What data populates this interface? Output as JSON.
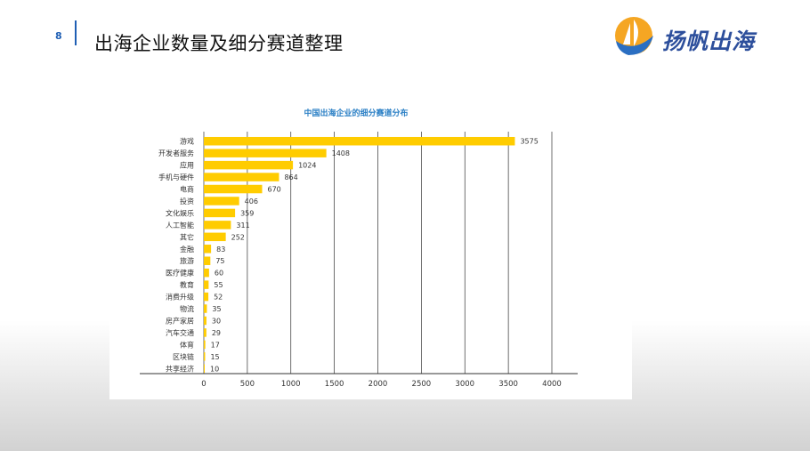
{
  "header": {
    "page_number": "8",
    "title": "出海企业数量及细分赛道整理"
  },
  "brand": {
    "name": "扬帆出海",
    "logo_icon": "sail-logo-icon"
  },
  "colors": {
    "bar": "#ffcc00",
    "accent": "#1f5fb4",
    "chart_title": "#2a7fc5",
    "grid": "#333333"
  },
  "chart_data": {
    "type": "bar",
    "orientation": "horizontal",
    "title": "中国出海企业的细分赛道分布",
    "categories": [
      "游戏",
      "开发者服务",
      "应用",
      "手机与硬件",
      "电商",
      "投资",
      "文化娱乐",
      "人工智能",
      "其它",
      "金融",
      "旅游",
      "医疗健康",
      "教育",
      "消费升级",
      "物流",
      "房产家居",
      "汽车交通",
      "体育",
      "区块链",
      "共享经济"
    ],
    "values": [
      3575,
      1408,
      1024,
      864,
      670,
      406,
      359,
      311,
      252,
      83,
      75,
      60,
      55,
      52,
      35,
      30,
      29,
      17,
      15,
      10
    ],
    "xlim": [
      0,
      4000
    ],
    "xticks": [
      "0",
      "500",
      "1000",
      "1500",
      "2000",
      "2500",
      "3000",
      "3500",
      "4000"
    ],
    "xlabel": "",
    "ylabel": "",
    "grid": "vertical"
  }
}
